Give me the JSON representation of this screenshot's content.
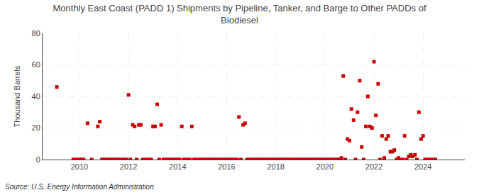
{
  "chart_data": {
    "type": "scatter",
    "title": "Monthly East Coast (PADD 1) Shipments by Pipeline, Tanker, and Barge to Other PADDs of\nBiodiesel",
    "ylabel": "Thousand Barrels",
    "annotations": [
      "Source: U.S. Energy Information Administration"
    ],
    "color": "#cc0000",
    "marker": "square",
    "grid": true,
    "xlim": [
      2008.5,
      2025.7
    ],
    "xticks": [
      2010,
      2012,
      2014,
      2016,
      2018,
      2020,
      2022,
      2024
    ],
    "ylim": [
      0,
      80
    ],
    "yticks": [
      0,
      20,
      40,
      60,
      80
    ],
    "x": [
      2009.08,
      2009.75,
      2009.83,
      2009.92,
      2010.0,
      2010.08,
      2010.17,
      2010.33,
      2010.5,
      2010.75,
      2010.83,
      2010.92,
      2011.0,
      2011.08,
      2011.17,
      2011.25,
      2011.33,
      2011.42,
      2011.5,
      2011.58,
      2011.67,
      2011.75,
      2011.83,
      2011.92,
      2012.0,
      2012.08,
      2012.17,
      2012.25,
      2012.33,
      2012.42,
      2012.5,
      2012.58,
      2012.67,
      2012.75,
      2012.83,
      2012.92,
      2013.0,
      2013.08,
      2013.17,
      2013.25,
      2013.33,
      2013.42,
      2013.5,
      2013.58,
      2013.67,
      2013.75,
      2013.83,
      2013.92,
      2014.0,
      2014.08,
      2014.17,
      2014.25,
      2014.33,
      2014.42,
      2014.5,
      2014.58,
      2014.67,
      2014.75,
      2014.83,
      2014.92,
      2015.0,
      2015.08,
      2015.17,
      2015.25,
      2015.33,
      2015.42,
      2015.5,
      2015.58,
      2015.67,
      2015.75,
      2015.83,
      2015.92,
      2016.0,
      2016.08,
      2016.17,
      2016.25,
      2016.33,
      2016.42,
      2016.5,
      2016.58,
      2016.67,
      2016.75,
      2016.83,
      2016.92,
      2017.0,
      2017.08,
      2017.17,
      2017.25,
      2017.33,
      2017.42,
      2017.5,
      2017.58,
      2017.67,
      2017.75,
      2017.83,
      2017.92,
      2018.0,
      2018.08,
      2018.17,
      2018.25,
      2018.33,
      2018.42,
      2018.5,
      2018.58,
      2018.67,
      2018.75,
      2018.83,
      2018.92,
      2019.0,
      2019.08,
      2019.17,
      2019.25,
      2019.33,
      2019.42,
      2019.5,
      2019.58,
      2019.67,
      2019.75,
      2019.83,
      2019.92,
      2020.0,
      2020.08,
      2020.17,
      2020.25,
      2020.33,
      2020.42,
      2020.5,
      2020.58,
      2020.67,
      2020.75,
      2020.83,
      2020.92,
      2021.0,
      2021.08,
      2021.17,
      2021.25,
      2021.33,
      2021.42,
      2021.5,
      2021.58,
      2021.67,
      2021.75,
      2021.83,
      2021.92,
      2022.0,
      2022.08,
      2022.17,
      2022.25,
      2022.33,
      2022.42,
      2022.5,
      2022.58,
      2022.67,
      2022.75,
      2022.83,
      2022.92,
      2023.0,
      2023.08,
      2023.17,
      2023.25,
      2023.33,
      2023.42,
      2023.5,
      2023.58,
      2023.67,
      2023.75,
      2023.83,
      2023.92,
      2024.0,
      2024.08,
      2024.17,
      2024.25,
      2024.33,
      2024.42,
      2024.5
    ],
    "values": [
      46,
      0,
      0,
      0,
      0,
      0,
      0,
      23,
      0,
      21,
      24,
      0,
      0,
      0,
      0,
      0,
      0,
      0,
      0,
      0,
      0,
      0,
      0,
      0,
      41,
      0,
      22,
      21,
      0,
      22,
      22,
      0,
      0,
      0,
      0,
      0,
      21,
      21,
      35,
      0,
      22,
      0,
      0,
      0,
      0,
      0,
      0,
      0,
      0,
      0,
      21,
      0,
      0,
      0,
      0,
      21,
      0,
      0,
      0,
      0,
      0,
      0,
      0,
      0,
      0,
      0,
      0,
      0,
      0,
      0,
      0,
      0,
      0,
      0,
      0,
      0,
      0,
      0,
      27,
      0,
      22,
      23,
      0,
      0,
      0,
      0,
      0,
      0,
      0,
      0,
      0,
      0,
      0,
      0,
      0,
      0,
      0,
      0,
      0,
      0,
      0,
      0,
      0,
      0,
      0,
      0,
      0,
      0,
      0,
      0,
      0,
      0,
      0,
      0,
      0,
      0,
      0,
      0,
      0,
      0,
      0,
      0,
      0,
      0,
      0,
      0,
      0,
      0,
      1,
      53,
      0,
      13,
      12,
      32,
      25,
      0,
      30,
      50,
      8,
      0,
      21,
      40,
      21,
      20,
      62,
      28,
      48,
      0,
      15,
      1,
      13,
      15,
      5,
      5,
      6,
      0,
      1,
      0,
      0,
      15,
      0,
      2,
      3,
      2,
      3,
      0,
      30,
      13,
      15,
      0,
      0,
      0,
      0,
      0,
      0
    ]
  }
}
